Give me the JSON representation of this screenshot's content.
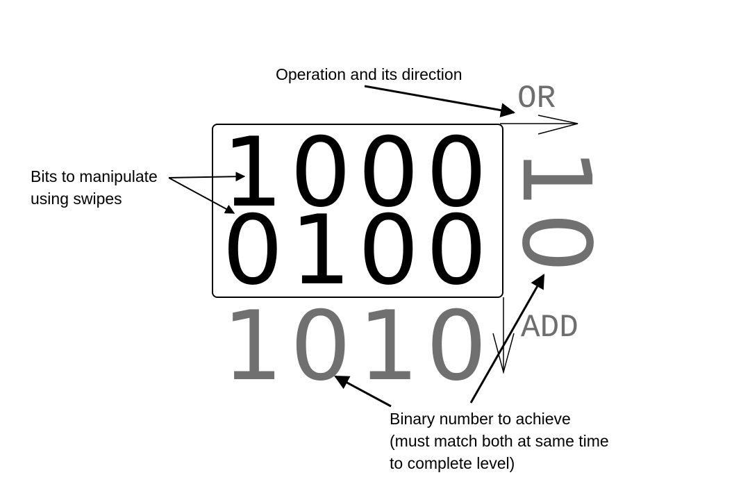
{
  "annotations": {
    "operation": "Operation and its direction",
    "bits_line1": "Bits to manipulate",
    "bits_line2": "using swipes",
    "target_line1": "Binary number to achieve",
    "target_line2": "(must match both at same time",
    "target_line3": "to complete level)"
  },
  "board": {
    "row1": "1000",
    "row2": "0100"
  },
  "targets": {
    "horizontal": "1010",
    "vertical": "10"
  },
  "operations": {
    "horizontal": "OR",
    "vertical": "ADD"
  },
  "colors": {
    "bits": "#000000",
    "target": "#707070",
    "operation": "#6e6e6e"
  }
}
